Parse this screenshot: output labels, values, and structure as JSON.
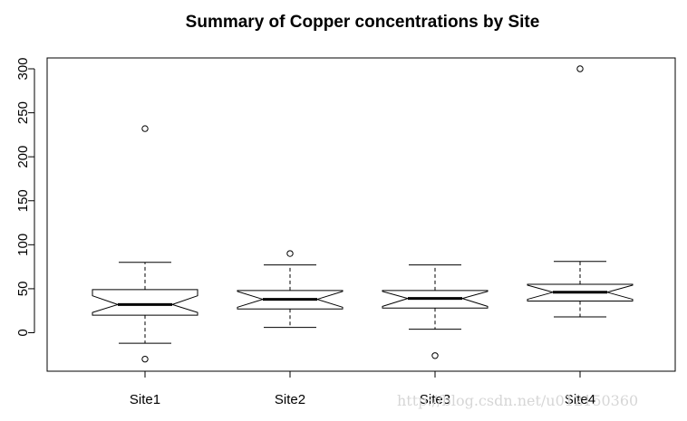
{
  "chart_data": {
    "type": "boxplot",
    "title": "Summary of Copper concentrations by Site",
    "xlabel": "",
    "ylabel": "",
    "ylim": [
      -45,
      312
    ],
    "yticks": [
      0,
      50,
      100,
      150,
      200,
      250,
      300
    ],
    "notched": true,
    "categories": [
      "Site1",
      "Site2",
      "Site3",
      "Site4"
    ],
    "boxes": [
      {
        "label": "Site1",
        "whisker_low": -12,
        "q1": 20,
        "median": 32,
        "q3": 49,
        "whisker_high": 80,
        "notch_low": 23,
        "notch_high": 42,
        "outliers": [
          232,
          -30
        ]
      },
      {
        "label": "Site2",
        "whisker_low": 6,
        "q1": 27,
        "median": 38,
        "q3": 48,
        "whisker_high": 77,
        "notch_low": 29,
        "notch_high": 47,
        "outliers": [
          90
        ]
      },
      {
        "label": "Site3",
        "whisker_low": 4,
        "q1": 28,
        "median": 39,
        "q3": 48,
        "whisker_high": 77,
        "notch_low": 30,
        "notch_high": 47,
        "outliers": [
          -26
        ]
      },
      {
        "label": "Site4",
        "whisker_low": 18,
        "q1": 36,
        "median": 46,
        "q3": 55,
        "whisker_high": 81,
        "notch_low": 38,
        "notch_high": 54,
        "outliers": [
          300
        ]
      }
    ]
  },
  "watermark": "http://blog.csdn.net/u012150360"
}
